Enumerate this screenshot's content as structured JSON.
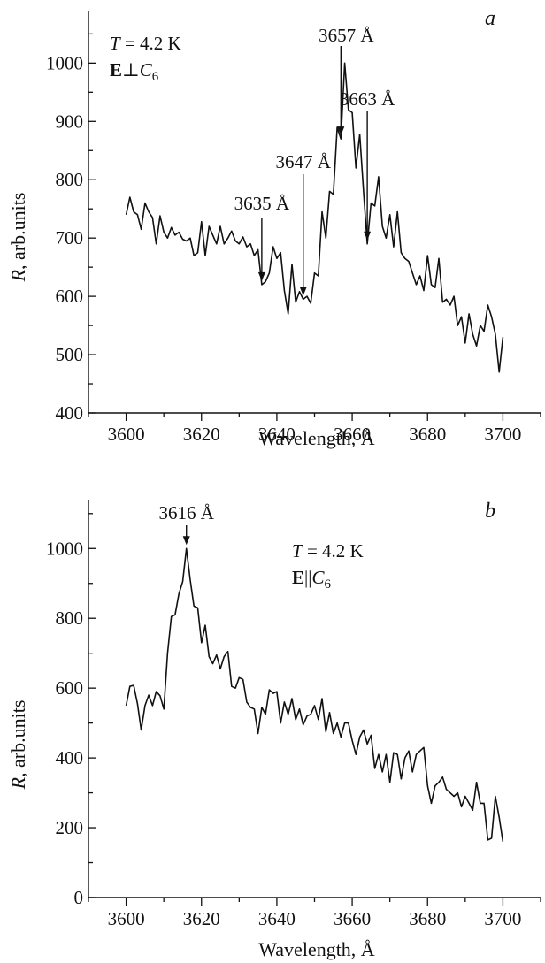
{
  "chart_data": [
    {
      "type": "line",
      "panel": "a",
      "xlabel": "Wavelength, Å",
      "ylabel": "R, arb.units",
      "ylabel_italic_part": "R",
      "ylabel_rest": ", arb.units",
      "xlim": [
        3590,
        3710
      ],
      "ylim": [
        400,
        1090
      ],
      "xticks_major": [
        3600,
        3620,
        3640,
        3660,
        3680,
        3700
      ],
      "xticks_minor": [
        3590,
        3610,
        3630,
        3650,
        3670,
        3690,
        3710
      ],
      "yticks_major": [
        400,
        500,
        600,
        700,
        800,
        900,
        1000
      ],
      "yticks_minor": [
        450,
        550,
        650,
        750,
        850,
        950,
        1050
      ],
      "conditions": {
        "temp_italic": "T",
        "temp_rest": " = 4.2 K",
        "field_bold": "E",
        "field_symbol": "⊥",
        "axis_italic": "C",
        "axis_sub": "6"
      },
      "series": [
        {
          "x": [
            3600,
            3601,
            3602,
            3603,
            3604,
            3605,
            3606,
            3607,
            3608,
            3609,
            3610,
            3611,
            3612,
            3613,
            3614,
            3615,
            3616,
            3617,
            3618,
            3619,
            3620,
            3621,
            3622,
            3623,
            3624,
            3625,
            3626,
            3627,
            3628,
            3629,
            3630,
            3631,
            3632,
            3633,
            3634,
            3635,
            3636,
            3637,
            3638,
            3639,
            3640,
            3641,
            3642,
            3643,
            3644,
            3645,
            3646,
            3647,
            3648,
            3649,
            3650,
            3651,
            3652,
            3653,
            3654,
            3655,
            3656,
            3657,
            3658,
            3659,
            3660,
            3661,
            3662,
            3663,
            3664,
            3665,
            3666,
            3667,
            3668,
            3669,
            3670,
            3671,
            3672,
            3673,
            3674,
            3675,
            3676,
            3677,
            3678,
            3679,
            3680,
            3681,
            3682,
            3683,
            3684,
            3685,
            3686,
            3687,
            3688,
            3689,
            3690,
            3691,
            3692,
            3693,
            3694,
            3695,
            3696,
            3697,
            3698,
            3699,
            3700
          ],
          "values": [
            740,
            770,
            745,
            740,
            715,
            760,
            745,
            735,
            690,
            738,
            710,
            700,
            718,
            705,
            710,
            698,
            695,
            700,
            670,
            675,
            728,
            670,
            720,
            705,
            690,
            720,
            690,
            700,
            712,
            695,
            690,
            702,
            685,
            690,
            670,
            680,
            620,
            625,
            640,
            685,
            665,
            675,
            610,
            570,
            655,
            590,
            608,
            595,
            600,
            588,
            640,
            635,
            745,
            700,
            780,
            775,
            890,
            870,
            1000,
            920,
            915,
            820,
            878,
            780,
            690,
            760,
            755,
            805,
            720,
            700,
            740,
            685,
            745,
            675,
            665,
            660,
            640,
            620,
            635,
            610,
            670,
            620,
            615,
            665,
            590,
            595,
            585,
            600,
            550,
            565,
            520,
            570,
            535,
            515,
            550,
            540,
            585,
            565,
            535,
            470,
            530
          ]
        }
      ],
      "annotations": [
        {
          "label": "3635 Å",
          "x": 3636
        },
        {
          "label": "3647 Å",
          "x": 3647
        },
        {
          "label": "3657 Å",
          "x": 3657
        },
        {
          "label": "3663 Å",
          "x": 3664
        }
      ]
    },
    {
      "type": "line",
      "panel": "b",
      "xlabel": "Wavelength, Å",
      "ylabel": "R, arb.units",
      "ylabel_italic_part": "R",
      "ylabel_rest": ", arb.units",
      "xlim": [
        3590,
        3710
      ],
      "ylim": [
        0,
        1140
      ],
      "xticks_major": [
        3600,
        3620,
        3640,
        3660,
        3680,
        3700
      ],
      "xticks_minor": [
        3590,
        3610,
        3630,
        3650,
        3670,
        3690,
        3710
      ],
      "yticks_major": [
        0,
        200,
        400,
        600,
        800,
        1000
      ],
      "yticks_minor": [
        100,
        300,
        500,
        700,
        900,
        1100
      ],
      "conditions": {
        "temp_italic": "T",
        "temp_rest": " = 4.2 K",
        "field_bold": "E",
        "field_symbol": "||",
        "axis_italic": "C",
        "axis_sub": "6"
      },
      "series": [
        {
          "x": [
            3600,
            3601,
            3602,
            3603,
            3604,
            3605,
            3606,
            3607,
            3608,
            3609,
            3610,
            3611,
            3612,
            3613,
            3614,
            3615,
            3616,
            3617,
            3618,
            3619,
            3620,
            3621,
            3622,
            3623,
            3624,
            3625,
            3626,
            3627,
            3628,
            3629,
            3630,
            3631,
            3632,
            3633,
            3634,
            3635,
            3636,
            3637,
            3638,
            3639,
            3640,
            3641,
            3642,
            3643,
            3644,
            3645,
            3646,
            3647,
            3648,
            3649,
            3650,
            3651,
            3652,
            3653,
            3654,
            3655,
            3656,
            3657,
            3658,
            3659,
            3660,
            3661,
            3662,
            3663,
            3664,
            3665,
            3666,
            3667,
            3668,
            3669,
            3670,
            3671,
            3672,
            3673,
            3674,
            3675,
            3676,
            3677,
            3678,
            3679,
            3680,
            3681,
            3682,
            3683,
            3684,
            3685,
            3686,
            3687,
            3688,
            3689,
            3690,
            3691,
            3692,
            3693,
            3694,
            3695,
            3696,
            3697,
            3698,
            3699,
            3700
          ],
          "values": [
            550,
            605,
            608,
            555,
            480,
            550,
            580,
            550,
            590,
            578,
            540,
            700,
            805,
            810,
            870,
            905,
            1000,
            910,
            835,
            830,
            730,
            780,
            690,
            670,
            695,
            655,
            690,
            705,
            605,
            600,
            630,
            625,
            560,
            545,
            540,
            470,
            545,
            525,
            595,
            585,
            590,
            500,
            560,
            525,
            570,
            510,
            540,
            495,
            520,
            525,
            550,
            510,
            570,
            475,
            530,
            470,
            500,
            460,
            500,
            500,
            450,
            410,
            460,
            480,
            440,
            465,
            370,
            410,
            360,
            410,
            330,
            415,
            410,
            340,
            400,
            420,
            360,
            410,
            420,
            430,
            320,
            270,
            320,
            330,
            345,
            310,
            300,
            290,
            300,
            260,
            290,
            270,
            250,
            330,
            270,
            270,
            165,
            170,
            290,
            230,
            160
          ]
        }
      ],
      "annotations": [
        {
          "label": "3616 Å",
          "x": 3616
        }
      ]
    }
  ]
}
